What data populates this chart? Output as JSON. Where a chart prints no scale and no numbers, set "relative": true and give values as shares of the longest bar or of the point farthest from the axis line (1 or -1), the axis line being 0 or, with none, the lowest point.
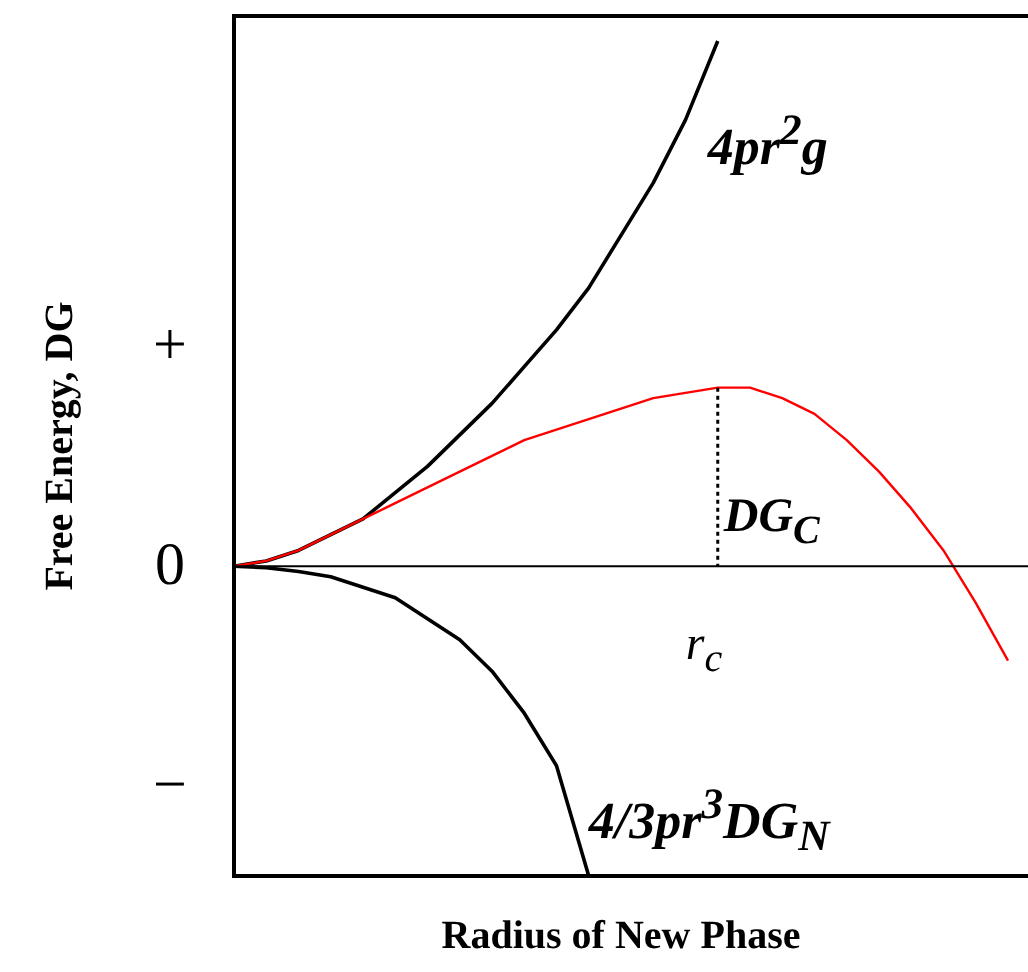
{
  "chart_data": {
    "type": "line",
    "relative": true,
    "xlabel": "Radius of New Phase",
    "ylabel": "Free Energy, DG",
    "categories": [
      null,
      null,
      null,
      null,
      null,
      null,
      null,
      null,
      null,
      null,
      null,
      null,
      null,
      null,
      null,
      null,
      null,
      null,
      null,
      null,
      null,
      null,
      null,
      null,
      null
    ],
    "series": [
      {
        "name": "4pr$^{2}$g",
        "color": "#000000",
        "values": [
          0,
          0.01,
          0.03,
          0.06,
          0.09,
          0.14,
          0.19,
          0.25,
          0.31,
          0.38,
          0.45,
          0.53,
          0.63,
          0.73,
          0.85,
          1.0,
          null,
          null,
          null,
          null,
          null,
          null,
          null,
          null,
          null
        ]
      },
      {
        "color": "#ff0000",
        "values": [
          0,
          0.01,
          0.03,
          0.06,
          0.09,
          0.12,
          0.15,
          0.18,
          0.21,
          0.24,
          0.26,
          0.28,
          0.3,
          0.32,
          0.33,
          0.34,
          0.34,
          0.32,
          0.29,
          0.24,
          0.18,
          0.11,
          0.03,
          -0.07,
          -0.18
        ]
      },
      {
        "name": "4/3pr$^{3}$DG$_{N}$",
        "color": "#000000",
        "values": [
          0,
          -0.003,
          -0.01,
          -0.02,
          -0.04,
          -0.06,
          -0.1,
          -0.14,
          -0.2,
          -0.28,
          -0.38,
          -0.59,
          null,
          null,
          null,
          null,
          null,
          null,
          null,
          null,
          null,
          null,
          null,
          null,
          null
        ]
      }
    ],
    "annotations": [
      "+",
      "0",
      "−",
      "DG$_{C}$",
      "r$_{c}$"
    ],
    "marker": "none",
    "line_style": "solid",
    "legend": false
  }
}
